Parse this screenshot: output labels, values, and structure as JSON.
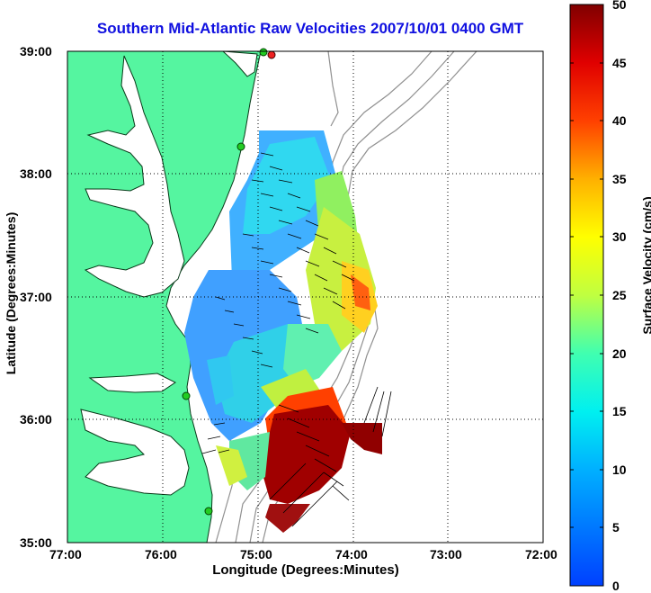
{
  "title": "Southern Mid-Atlantic Raw Velocities 2007/10/01 0400 GMT",
  "xlabel": "Longitude (Degrees:Minutes)",
  "ylabel": "Latitude (Degrees:Minutes)",
  "x_ticks": [
    "77:00",
    "76:00",
    "75:00",
    "74:00",
    "73:00",
    "72:00"
  ],
  "y_ticks": [
    "39:00",
    "38:00",
    "37:00",
    "36:00",
    "35:00"
  ],
  "colorbar": {
    "label": "Surface Velocity (cm/s)",
    "ticks": [
      "50",
      "45",
      "40",
      "35",
      "30",
      "25",
      "20",
      "15",
      "10",
      "5",
      "0"
    ],
    "range": [
      0,
      50
    ]
  },
  "colors": {
    "land": "#55f5a0",
    "title": "#1010e0",
    "water": "#ffffff",
    "grid": "#000000",
    "bathymetry": "#909090",
    "arrows": "#000000",
    "site_markers": "#22cc22",
    "site_marker_alert": "#ee2222"
  },
  "map_extent": {
    "lon": [
      -77,
      -72
    ],
    "lat": [
      35,
      39
    ]
  },
  "grid": true
}
